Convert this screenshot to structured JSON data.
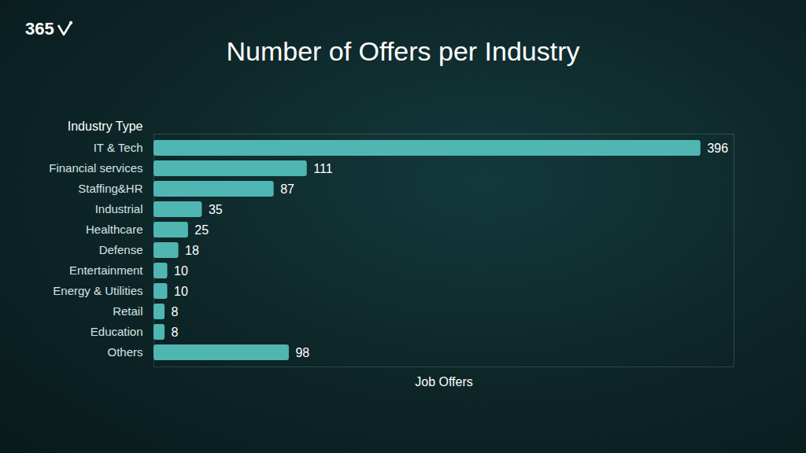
{
  "chart_data": {
    "type": "bar",
    "orientation": "horizontal",
    "title": "Number of Offers per Industry",
    "annotations": [
      "365"
    ],
    "xlabel": "Job Offers",
    "ylabel": "Industry Type",
    "categories": [
      "IT & Tech",
      "Financial services",
      "Staffing&HR",
      "Industrial",
      "Healthcare",
      "Defense",
      "Entertainment",
      "Energy & Utilities",
      "Retail",
      "Education",
      "Others"
    ],
    "values": [
      396,
      111,
      87,
      35,
      25,
      18,
      10,
      10,
      8,
      8,
      98
    ],
    "color": "#4fb6b2",
    "xlim": [
      0,
      420
    ],
    "grid": false,
    "data_labels": true,
    "tick_labels": "y"
  }
}
